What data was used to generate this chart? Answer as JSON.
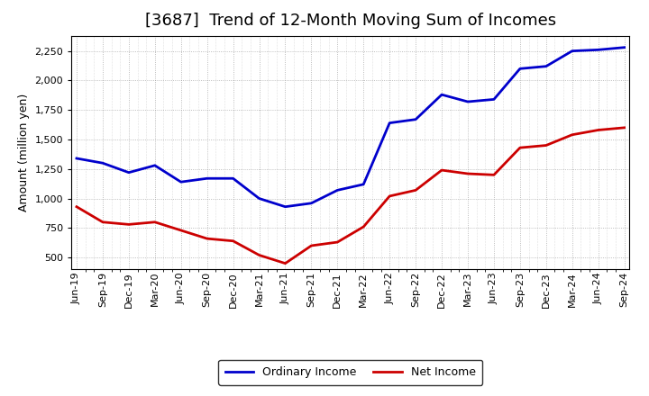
{
  "title": "[3687]  Trend of 12-Month Moving Sum of Incomes",
  "ylabel": "Amount (million yen)",
  "xlabels": [
    "Jun-19",
    "Sep-19",
    "Dec-19",
    "Mar-20",
    "Jun-20",
    "Sep-20",
    "Dec-20",
    "Mar-21",
    "Jun-21",
    "Sep-21",
    "Dec-21",
    "Mar-22",
    "Jun-22",
    "Sep-22",
    "Dec-22",
    "Mar-23",
    "Jun-23",
    "Sep-23",
    "Dec-23",
    "Mar-24",
    "Jun-24",
    "Sep-24"
  ],
  "ordinary_income": [
    1340,
    1300,
    1220,
    1280,
    1140,
    1170,
    1170,
    1000,
    930,
    960,
    1070,
    1120,
    1640,
    1670,
    1880,
    1820,
    1840,
    2100,
    2120,
    2250,
    2260,
    2280
  ],
  "net_income": [
    930,
    800,
    780,
    800,
    730,
    660,
    640,
    520,
    450,
    600,
    630,
    760,
    1020,
    1070,
    1240,
    1210,
    1200,
    1430,
    1450,
    1540,
    1580,
    1600
  ],
  "ordinary_color": "#0000cc",
  "net_color": "#cc0000",
  "background_color": "#ffffff",
  "plot_bg_color": "#ffffff",
  "grid_color": "#888888",
  "ylim": [
    400,
    2380
  ],
  "yticks": [
    500,
    750,
    1000,
    1250,
    1500,
    1750,
    2000,
    2250
  ],
  "title_fontsize": 13,
  "axis_label_fontsize": 9,
  "tick_fontsize": 8,
  "legend_fontsize": 9,
  "line_width": 2.0
}
